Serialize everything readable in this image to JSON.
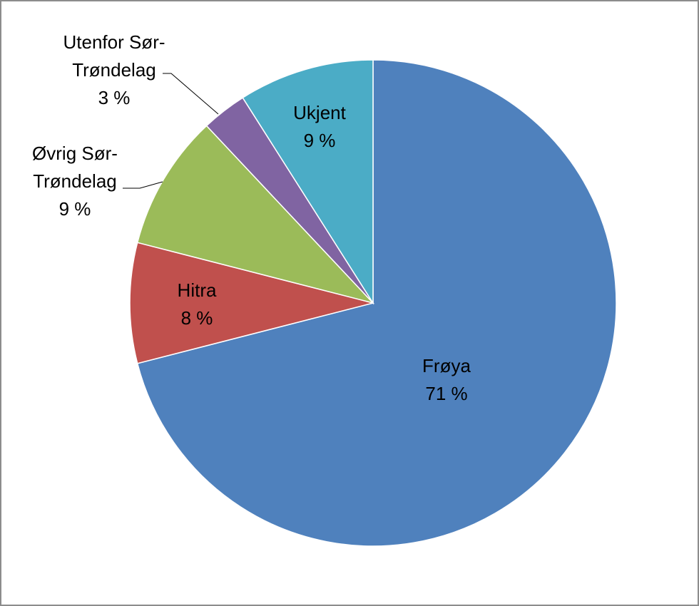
{
  "chart_data": {
    "type": "pie",
    "title": "",
    "start_angle_deg": 0,
    "direction": "clockwise",
    "legend": "none",
    "slices": [
      {
        "name": "Frøya",
        "value": 71,
        "label_lines": [
          "Frøya",
          "71 %"
        ],
        "color": "#4F81BD"
      },
      {
        "name": "Hitra",
        "value": 8,
        "label_lines": [
          "Hitra",
          "8 %"
        ],
        "color": "#C0504D"
      },
      {
        "name": "Øvrig Sør-Trøndelag",
        "value": 9,
        "label_lines": [
          "Øvrig Sør-",
          "Trøndelag",
          "9 %"
        ],
        "color": "#9BBB59"
      },
      {
        "name": "Utenfor Sør-Trøndelag",
        "value": 3,
        "label_lines": [
          "Utenfor Sør-",
          "Trøndelag",
          "3 %"
        ],
        "color": "#8064A2"
      },
      {
        "name": "Ukjent",
        "value": 9,
        "label_lines": [
          "Ukjent",
          "9 %"
        ],
        "color": "#4BACC6"
      }
    ]
  }
}
